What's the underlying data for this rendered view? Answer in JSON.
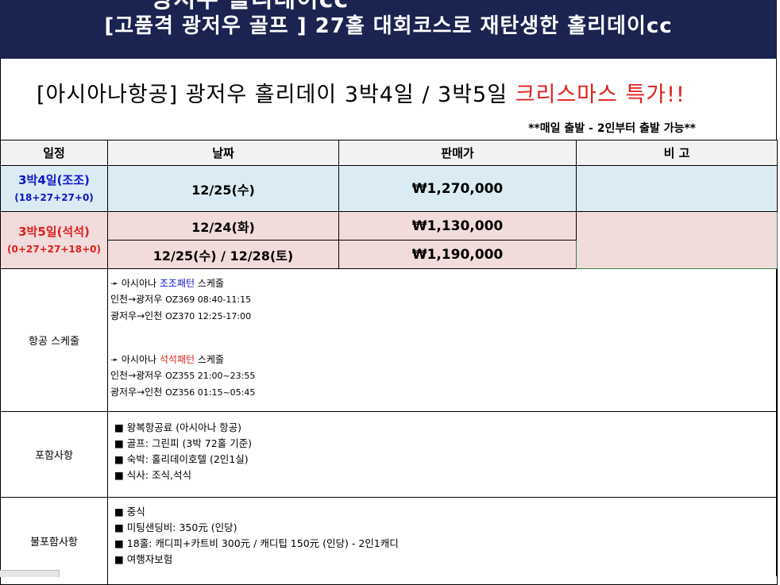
{
  "banner": {
    "title": "[고품격 광저우 골프 ] 27홀 대회코스로 재탄생한 홀리데이cc",
    "ghost_text": "광저우 홀리데이cc"
  },
  "headline": {
    "prefix": "[아시아나항공] 광저우 홀리데이 3박4일 / 3박5일 ",
    "highlight": "크리스마스 특가!!"
  },
  "note": "**매일 출발 - 2인부터 출발 가능**",
  "table": {
    "headers": [
      "일정",
      "날짜",
      "판매가",
      "비 고"
    ],
    "rows": {
      "blue": {
        "period": "3박4일",
        "period_type": "(조조)",
        "holes": "(18+27+27+0)",
        "date": "12/25(수)",
        "price": "₩1,270,000",
        "remark": ""
      },
      "red": {
        "period": "3박5일",
        "period_type": "(석석)",
        "holes": "(0+27+27+18+0)",
        "items": [
          {
            "date": "12/24(화)",
            "price": "₩1,130,000"
          },
          {
            "date": "12/25(수) / 12/28(토)",
            "price": "₩1,190,000"
          }
        ],
        "remark": ""
      }
    },
    "flight": {
      "label": "항공 스케줄",
      "morning_header_pre": "➛ 아시아나 ",
      "morning_header_hl": "조조패턴",
      "morning_header_post": " 스케줄",
      "morning_out_route": "인천→광저우 ",
      "morning_out_flight": "OZ369 08:40-11:15",
      "morning_in_route": "광저우→인천 ",
      "morning_in_flight": "OZ370 12:25-17:00",
      "evening_header_pre": "➛ 아시아나 ",
      "evening_header_hl": "석석패턴",
      "evening_header_post": " 스케줄",
      "evening_out_route": "인천→광저우 ",
      "evening_out_flight": "OZ355 21:00~23:55",
      "evening_in_route": "광저우→인천 ",
      "evening_in_flight": "OZ356 01:15~05:45"
    },
    "included": {
      "label": "포함사항",
      "items": [
        "■ 왕복항공료 (아시아나 항공)",
        "■ 골프: 그린피 (3박 72홀 기준)",
        "■ 숙박: 홀리데이호텔 (2인1실)",
        "■ 식사: 조식,석식"
      ]
    },
    "excluded": {
      "label": "불포함사항",
      "items": [
        "■ 중식",
        "■ 미팅샌딩비: 350元 (인당)",
        "■ 18홀: 캐디피+카트비 300元 / 캐디팁 150元 (인당) - 2인1캐디",
        "■ 여행자보험"
      ]
    }
  },
  "colors": {
    "banner_bg": "#1b2350",
    "blue_row": "#dbebf3",
    "pink_row": "#f2dcdb",
    "accent_red": "#e0201e",
    "accent_blue": "#0f17c9"
  }
}
